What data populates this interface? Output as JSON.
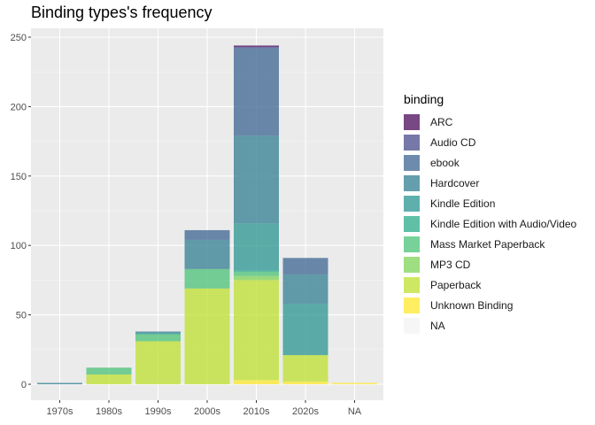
{
  "chart_data": {
    "type": "bar",
    "stacked": true,
    "title": "Binding types's frequency",
    "xlabel": "",
    "ylabel": "",
    "ylim": [
      0,
      255
    ],
    "yticks": [
      0,
      50,
      100,
      150,
      200,
      250
    ],
    "grid": true,
    "legend_title": "binding",
    "legend_position": "right",
    "categories": [
      "1970s",
      "1980s",
      "1990s",
      "2000s",
      "2010s",
      "2020s",
      "NA"
    ],
    "series": [
      {
        "name": "Unknown Binding",
        "color": "#FDE725",
        "values": [
          0,
          0,
          0,
          0,
          3,
          2,
          1
        ]
      },
      {
        "name": "Paperback",
        "color": "#BBDF27",
        "values": [
          0,
          7,
          31,
          69,
          72,
          19,
          0
        ]
      },
      {
        "name": "MP3 CD",
        "color": "#7AD151",
        "values": [
          0,
          0,
          0,
          0,
          3,
          0,
          0
        ]
      },
      {
        "name": "Mass Market Paperback",
        "color": "#43BF71",
        "values": [
          0,
          5,
          5,
          14,
          3,
          0,
          0
        ]
      },
      {
        "name": "Kindle Edition with Audio/Video",
        "color": "#22A884",
        "values": [
          0,
          0,
          0,
          0,
          1,
          0,
          0
        ]
      },
      {
        "name": "Kindle Edition",
        "color": "#21908C",
        "values": [
          0,
          0,
          1,
          0,
          34,
          37,
          0
        ]
      },
      {
        "name": "Hardcover",
        "color": "#2A788E",
        "values": [
          1,
          0,
          1,
          21,
          63,
          21,
          0
        ]
      },
      {
        "name": "ebook",
        "color": "#35608D",
        "values": [
          0,
          0,
          0,
          7,
          63,
          12,
          0
        ]
      },
      {
        "name": "Audio CD",
        "color": "#414487",
        "values": [
          0,
          0,
          0,
          0,
          1,
          0,
          0
        ]
      },
      {
        "name": "ARC",
        "color": "#440154",
        "values": [
          0,
          0,
          0,
          0,
          1,
          0,
          0
        ]
      },
      {
        "name": "NA",
        "color": "#F2F2F2",
        "values": [
          0,
          0,
          0,
          0,
          0,
          0,
          0
        ]
      }
    ],
    "legend_order": [
      "ARC",
      "Audio CD",
      "ebook",
      "Hardcover",
      "Kindle Edition",
      "Kindle Edition with Audio/Video",
      "Mass Market Paperback",
      "MP3 CD",
      "Paperback",
      "Unknown Binding",
      "NA"
    ]
  }
}
